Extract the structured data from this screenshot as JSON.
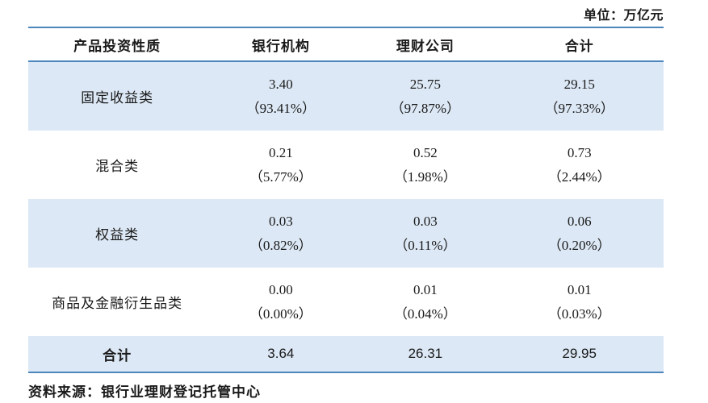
{
  "unit_note": "单位：万亿元",
  "source_note": "资料来源：银行业理财登记托管中心",
  "colors": {
    "line": "#4c86bb",
    "row-shade": "#dce8f5",
    "text": "#1a1a1a"
  },
  "table": {
    "headers": [
      "产品投资性质",
      "银行机构",
      "理财公司",
      "合计"
    ],
    "rows": [
      {
        "label": "固定收益类",
        "cells": [
          {
            "value": "3.40",
            "pct": "（93.41%）"
          },
          {
            "value": "25.75",
            "pct": "（97.87%）"
          },
          {
            "value": "29.15",
            "pct": "（97.33%）"
          }
        ]
      },
      {
        "label": "混合类",
        "cells": [
          {
            "value": "0.21",
            "pct": "（5.77%）"
          },
          {
            "value": "0.52",
            "pct": "（1.98%）"
          },
          {
            "value": "0.73",
            "pct": "（2.44%）"
          }
        ]
      },
      {
        "label": "权益类",
        "cells": [
          {
            "value": "0.03",
            "pct": "（0.82%）"
          },
          {
            "value": "0.03",
            "pct": "（0.11%）"
          },
          {
            "value": "0.06",
            "pct": "（0.20%）"
          }
        ]
      },
      {
        "label": "商品及金融衍生品类",
        "cells": [
          {
            "value": "0.00",
            "pct": "（0.00%）"
          },
          {
            "value": "0.01",
            "pct": "（0.04%）"
          },
          {
            "value": "0.01",
            "pct": "（0.03%）"
          }
        ]
      }
    ],
    "total": {
      "label": "合计",
      "values": [
        "3.64",
        "26.31",
        "29.95"
      ]
    }
  },
  "chart_data": {
    "type": "table",
    "unit_note": "单位：万亿元",
    "columns": [
      "产品投资性质",
      "银行机构",
      "理财公司",
      "合计"
    ],
    "rows": [
      {
        "category": "固定收益类",
        "values": [
          3.4,
          25.75,
          29.15
        ],
        "shares": [
          "93.41%",
          "97.87%",
          "97.33%"
        ]
      },
      {
        "category": "混合类",
        "values": [
          0.21,
          0.52,
          0.73
        ],
        "shares": [
          "5.77%",
          "1.98%",
          "2.44%"
        ]
      },
      {
        "category": "权益类",
        "values": [
          0.03,
          0.03,
          0.06
        ],
        "shares": [
          "0.82%",
          "0.11%",
          "0.20%"
        ]
      },
      {
        "category": "商品及金融衍生品类",
        "values": [
          0.0,
          0.01,
          0.01
        ],
        "shares": [
          "0.00%",
          "0.04%",
          "0.03%"
        ]
      }
    ],
    "total_row": {
      "category": "合计",
      "values": [
        3.64,
        26.31,
        29.95
      ]
    },
    "source": "资料来源：银行业理财登记托管中心"
  }
}
